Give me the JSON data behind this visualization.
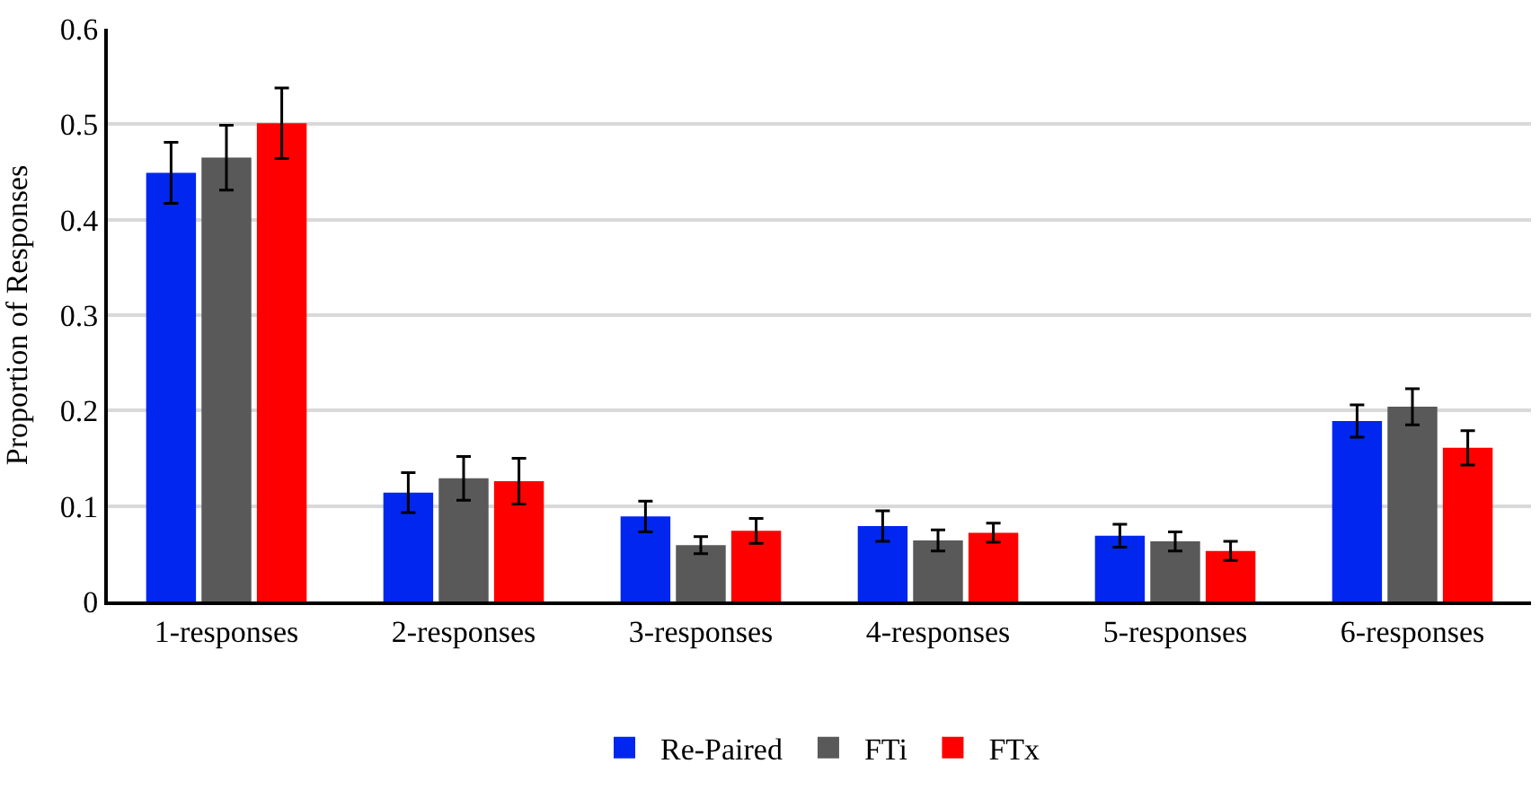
{
  "chart_data": {
    "type": "bar",
    "ylabel": "Proportion of Responses",
    "categories": [
      "1-responses",
      "2-responses",
      "3-responses",
      "4-responses",
      "5-responses",
      "6-responses"
    ],
    "series": [
      {
        "name": "Re-Paired",
        "color": "#0026ef",
        "values": [
          0.449,
          0.114,
          0.089,
          0.079,
          0.069,
          0.189
        ],
        "errors": [
          0.032,
          0.021,
          0.016,
          0.016,
          0.012,
          0.017
        ]
      },
      {
        "name": "FTi",
        "color": "#595959",
        "values": [
          0.465,
          0.129,
          0.059,
          0.064,
          0.063,
          0.204
        ],
        "errors": [
          0.034,
          0.023,
          0.009,
          0.011,
          0.01,
          0.019
        ]
      },
      {
        "name": "FTx",
        "color": "#ff0000",
        "values": [
          0.501,
          0.126,
          0.074,
          0.072,
          0.053,
          0.161
        ],
        "errors": [
          0.037,
          0.024,
          0.013,
          0.01,
          0.01,
          0.018
        ]
      }
    ],
    "ylim": [
      0,
      0.6
    ],
    "yticks": [
      0,
      0.1,
      0.2,
      0.3,
      0.4,
      0.5,
      0.6
    ],
    "grid": "y",
    "legend": "bottom"
  }
}
